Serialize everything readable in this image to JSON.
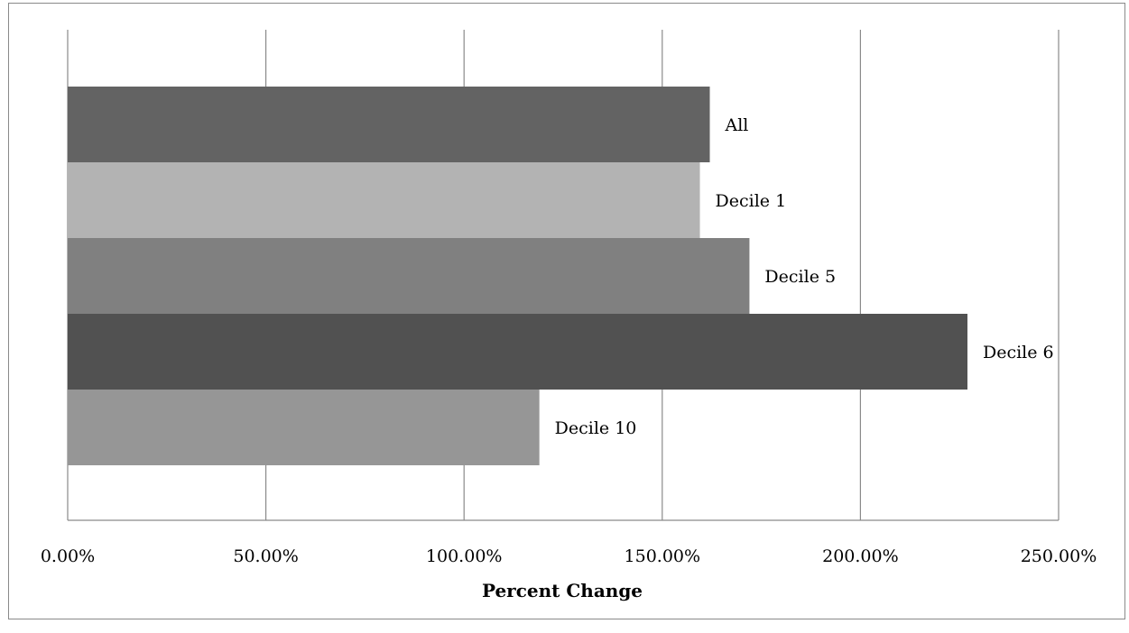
{
  "chart_data": {
    "type": "bar",
    "orientation": "horizontal",
    "categories": [
      "All",
      "Decile 1",
      "Decile 5",
      "Decile 6",
      "Decile 10"
    ],
    "values": [
      162.0,
      159.5,
      172.0,
      227.0,
      119.0
    ],
    "colors": [
      "#636363",
      "#b3b3b3",
      "#808080",
      "#515151",
      "#969696"
    ],
    "xlabel": "Percent Change",
    "xlim": [
      0,
      250
    ],
    "x_ticks": [
      0,
      50,
      100,
      150,
      200,
      250
    ],
    "x_tick_labels": [
      "0.00%",
      "50.00%",
      "100.00%",
      "150.00%",
      "200.00%",
      "250.00%"
    ],
    "grid": "vertical",
    "gridline_color": "#8a8a8a",
    "legend": "none",
    "data_labels": "category name at bar end"
  }
}
